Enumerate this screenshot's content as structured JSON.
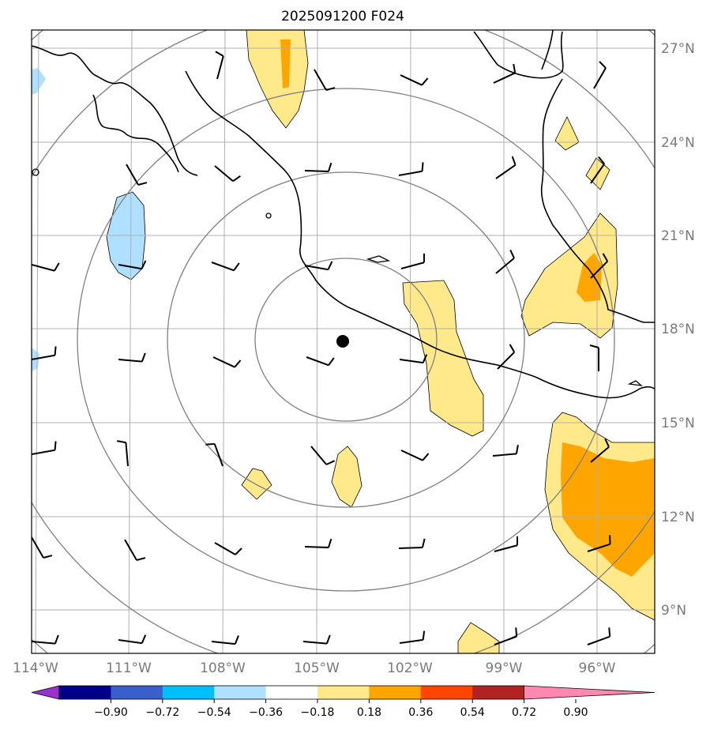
{
  "title": "2025091200 F024",
  "axes": {
    "lon_labels": [
      "114°W",
      "111°W",
      "108°W",
      "105°W",
      "102°W",
      "99°W",
      "96°W"
    ],
    "lat_labels": [
      "27°N",
      "24°N",
      "21°N",
      "18°N",
      "15°N",
      "12°N",
      "9°N"
    ]
  },
  "colorbar": {
    "ticks": [
      "−0.90",
      "−0.72",
      "−0.54",
      "−0.36",
      "−0.18",
      "0.18",
      "0.36",
      "0.54",
      "0.72",
      "0.90"
    ],
    "colors": [
      "#9932cc",
      "#00008b",
      "#3a5fcd",
      "#00bfff",
      "#b0e0ff",
      "#ffffff",
      "#ffe98a",
      "#ffa500",
      "#ff4500",
      "#b22222",
      "#ff88b0"
    ]
  },
  "colors": {
    "grid": "#b0b0b0",
    "range_rings": "#808080",
    "coastline": "#000000",
    "center_marker": "#000000"
  }
}
